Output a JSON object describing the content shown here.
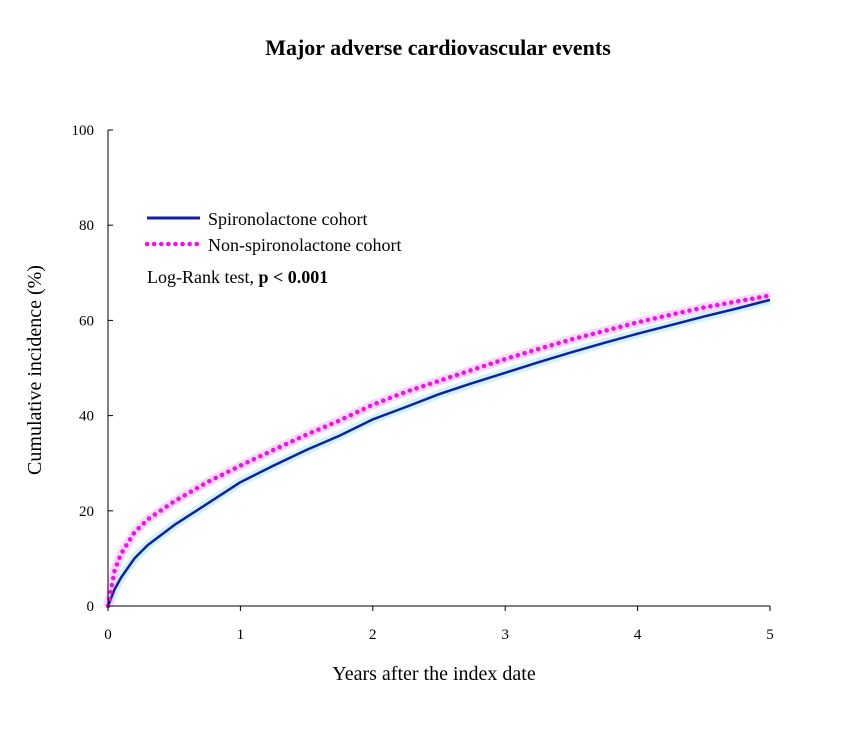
{
  "chart_data": {
    "type": "line",
    "title": "Major adverse cardiovascular events",
    "xlabel": "Years after the index date",
    "ylabel": "Cumulative incidence (%)",
    "xlim": [
      0,
      5
    ],
    "ylim": [
      0,
      100
    ],
    "xticks": [
      "0",
      "1",
      "2",
      "3",
      "4",
      "5"
    ],
    "yticks": [
      "0",
      "20",
      "40",
      "60",
      "80",
      "100"
    ],
    "grid": false,
    "legend_position": "top-left",
    "series": [
      {
        "name": "Spironolactone cohort",
        "color": "#1020a0",
        "band_color": "#bfeff5",
        "style": "solid",
        "x": [
          0,
          0.05,
          0.1,
          0.2,
          0.3,
          0.5,
          0.75,
          1.0,
          1.25,
          1.5,
          1.75,
          2.0,
          2.25,
          2.5,
          2.75,
          3.0,
          3.25,
          3.5,
          3.75,
          4.0,
          4.25,
          4.5,
          4.75,
          5.0
        ],
        "y": [
          0,
          3.5,
          6.0,
          10.0,
          12.8,
          17.0,
          21.5,
          26.0,
          29.5,
          32.8,
          35.8,
          39.2,
          41.8,
          44.5,
          46.8,
          49.0,
          51.2,
          53.3,
          55.3,
          57.2,
          59.0,
          60.8,
          62.5,
          64.3
        ]
      },
      {
        "name": "Non-spironolactone cohort",
        "color": "#ee11ee",
        "band_color": "#f7c9f7",
        "style": "dotted",
        "x": [
          0,
          0.05,
          0.1,
          0.2,
          0.3,
          0.5,
          0.75,
          1.0,
          1.25,
          1.5,
          1.75,
          2.0,
          2.25,
          2.5,
          2.75,
          3.0,
          3.25,
          3.5,
          3.75,
          4.0,
          4.25,
          4.5,
          4.75,
          5.0
        ],
        "y": [
          0,
          7.5,
          11.0,
          15.5,
          18.2,
          22.0,
          26.0,
          29.5,
          32.8,
          36.0,
          39.0,
          42.3,
          45.0,
          47.3,
          49.6,
          51.9,
          54.0,
          56.0,
          57.8,
          59.6,
          61.2,
          62.7,
          64.0,
          65.2
        ]
      }
    ],
    "annotation": {
      "text": "Log-Rank test, ",
      "bold_text": "p < 0.001"
    }
  }
}
